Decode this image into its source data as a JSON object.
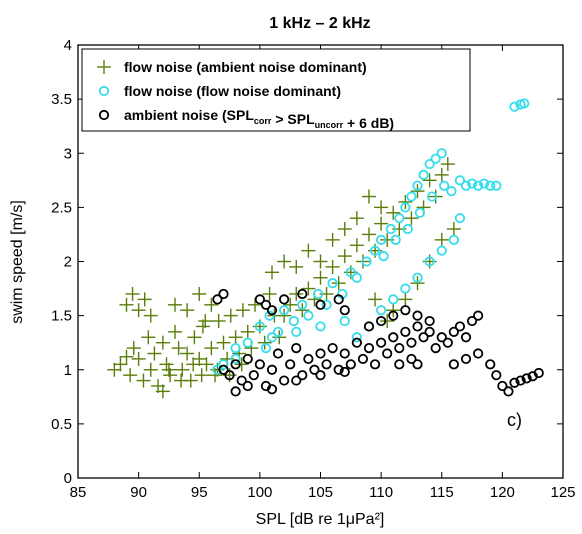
{
  "chart_data": {
    "type": "scatter",
    "title": "1 kHz – 2 kHz",
    "xlabel": "SPL [dB re 1μPa²]",
    "ylabel": "swim speed [m/s]",
    "xlim": [
      85,
      125
    ],
    "ylim": [
      0,
      4
    ],
    "xticks": [
      85,
      90,
      95,
      100,
      105,
      110,
      115,
      120,
      125
    ],
    "yticks": [
      0,
      0.5,
      1,
      1.5,
      2,
      2.5,
      3,
      3.5,
      4
    ],
    "xtick_labels": [
      "85",
      "90",
      "95",
      "100",
      "105",
      "110",
      "115",
      "120",
      "125"
    ],
    "ytick_labels": [
      "0",
      "0.5",
      "1",
      "1.5",
      "2",
      "2.5",
      "3",
      "3.5",
      "4"
    ],
    "panel_label": "c)",
    "legend_position": "top-left",
    "grid": false,
    "series": [
      {
        "name": "flow noise (ambient noise dominant)",
        "marker": "plus",
        "color": "#5a7d0a",
        "points": [
          [
            88,
            1.0
          ],
          [
            88.5,
            1.05
          ],
          [
            89,
            1.12
          ],
          [
            89.3,
            0.95
          ],
          [
            89.6,
            1.2
          ],
          [
            90,
            1.1
          ],
          [
            90.4,
            0.9
          ],
          [
            90.8,
            1.3
          ],
          [
            91,
            1.0
          ],
          [
            91.3,
            1.15
          ],
          [
            91.6,
            0.85
          ],
          [
            92,
            1.25
          ],
          [
            92.3,
            1.05
          ],
          [
            92.6,
            0.95
          ],
          [
            93,
            1.35
          ],
          [
            93.3,
            1.2
          ],
          [
            93.6,
            1.0
          ],
          [
            94,
            1.15
          ],
          [
            94.3,
            0.9
          ],
          [
            94.6,
            1.3
          ],
          [
            95,
            1.1
          ],
          [
            95.3,
            1.4
          ],
          [
            95.6,
            1.05
          ],
          [
            96,
            1.2
          ],
          [
            96.3,
            0.95
          ],
          [
            96.6,
            1.45
          ],
          [
            97,
            1.25
          ],
          [
            97.3,
            1.1
          ],
          [
            97.6,
            1.5
          ],
          [
            98,
            1.3
          ],
          [
            98.3,
            1.15
          ],
          [
            98.6,
            1.55
          ],
          [
            99,
            1.35
          ],
          [
            99.3,
            1.2
          ],
          [
            99.6,
            1.6
          ],
          [
            100,
            1.4
          ],
          [
            100.4,
            1.25
          ],
          [
            100.8,
            1.7
          ],
          [
            101.2,
            1.5
          ],
          [
            101.6,
            1.3
          ],
          [
            89,
            1.6
          ],
          [
            89.5,
            1.7
          ],
          [
            90,
            1.55
          ],
          [
            90.5,
            1.65
          ],
          [
            91,
            1.5
          ],
          [
            93,
            1.6
          ],
          [
            94,
            1.55
          ],
          [
            95,
            1.7
          ],
          [
            95.5,
            1.45
          ],
          [
            96,
            1.6
          ],
          [
            92,
            0.8
          ],
          [
            92.5,
            1.0
          ],
          [
            93.5,
            0.9
          ],
          [
            94.5,
            1.05
          ],
          [
            95.2,
            0.95
          ],
          [
            96.5,
            1.0
          ],
          [
            97.5,
            0.95
          ],
          [
            98.5,
            1.05
          ],
          [
            102,
            1.5
          ],
          [
            102.5,
            1.6
          ],
          [
            103,
            1.7
          ],
          [
            103.5,
            1.55
          ],
          [
            104,
            1.75
          ],
          [
            104.5,
            1.65
          ],
          [
            105,
            1.85
          ],
          [
            105.5,
            1.7
          ],
          [
            106,
            1.95
          ],
          [
            106.5,
            1.8
          ],
          [
            107,
            2.05
          ],
          [
            107.5,
            1.9
          ],
          [
            108,
            2.15
          ],
          [
            108.5,
            2.0
          ],
          [
            109,
            2.25
          ],
          [
            109.5,
            2.1
          ],
          [
            110,
            2.35
          ],
          [
            110.5,
            2.2
          ],
          [
            111,
            2.45
          ],
          [
            111.5,
            2.3
          ],
          [
            112,
            2.55
          ],
          [
            112.5,
            2.4
          ],
          [
            113,
            2.65
          ],
          [
            113.5,
            2.5
          ],
          [
            114,
            2.75
          ],
          [
            114.5,
            2.6
          ],
          [
            115,
            2.8
          ],
          [
            115.5,
            2.9
          ],
          [
            101,
            1.9
          ],
          [
            102,
            2.0
          ],
          [
            103,
            1.95
          ],
          [
            104,
            2.1
          ],
          [
            105,
            2.0
          ],
          [
            106,
            2.2
          ],
          [
            107,
            2.3
          ],
          [
            108,
            2.4
          ],
          [
            109,
            2.6
          ],
          [
            110,
            2.5
          ],
          [
            111,
            1.55
          ],
          [
            112,
            1.65
          ],
          [
            113,
            1.8
          ],
          [
            114,
            2.0
          ],
          [
            115,
            2.2
          ],
          [
            116,
            2.3
          ],
          [
            110.5,
            1.45
          ],
          [
            109.5,
            1.65
          ]
        ]
      },
      {
        "name": "flow noise (flow noise dominant)",
        "marker": "circle",
        "color": "#33ddee",
        "points": [
          [
            100,
            1.4
          ],
          [
            100.8,
            1.5
          ],
          [
            101.5,
            1.35
          ],
          [
            102,
            1.55
          ],
          [
            102.8,
            1.45
          ],
          [
            103.5,
            1.6
          ],
          [
            104,
            1.5
          ],
          [
            104.8,
            1.7
          ],
          [
            105.5,
            1.6
          ],
          [
            106,
            1.8
          ],
          [
            106.8,
            1.7
          ],
          [
            107.5,
            1.9
          ],
          [
            108,
            1.85
          ],
          [
            108.8,
            2.0
          ],
          [
            109.5,
            2.1
          ],
          [
            110,
            2.2
          ],
          [
            110.8,
            2.3
          ],
          [
            111.5,
            2.4
          ],
          [
            112,
            2.5
          ],
          [
            112.5,
            2.6
          ],
          [
            113,
            2.7
          ],
          [
            113.5,
            2.8
          ],
          [
            114,
            2.9
          ],
          [
            114.5,
            2.95
          ],
          [
            115,
            3.0
          ],
          [
            114.2,
            2.6
          ],
          [
            113.2,
            2.45
          ],
          [
            112.2,
            2.3
          ],
          [
            111.2,
            2.2
          ],
          [
            110.2,
            2.05
          ],
          [
            115.2,
            2.7
          ],
          [
            115.8,
            2.65
          ],
          [
            116.5,
            2.75
          ],
          [
            117,
            2.7
          ],
          [
            117.5,
            2.72
          ],
          [
            118,
            2.7
          ],
          [
            118.5,
            2.72
          ],
          [
            119,
            2.7
          ],
          [
            119.5,
            2.7
          ],
          [
            121,
            3.43
          ],
          [
            121.5,
            3.45
          ],
          [
            121.8,
            3.46
          ],
          [
            108,
            1.3
          ],
          [
            109,
            1.4
          ],
          [
            110,
            1.55
          ],
          [
            111,
            1.65
          ],
          [
            112,
            1.75
          ],
          [
            113,
            1.85
          ],
          [
            114,
            2.0
          ],
          [
            115,
            2.1
          ],
          [
            116,
            2.2
          ],
          [
            116.5,
            2.4
          ],
          [
            98,
            1.2
          ],
          [
            99,
            1.25
          ],
          [
            100.5,
            1.2
          ],
          [
            101,
            1.3
          ],
          [
            103,
            1.35
          ],
          [
            105,
            1.4
          ],
          [
            107,
            1.45
          ],
          [
            96.5,
            1.0
          ],
          [
            97,
            1.05
          ],
          [
            98,
            1.1
          ]
        ]
      },
      {
        "name": "ambient noise (SPLcorr > SPLuncorr + 6 dB)",
        "marker": "circle",
        "color": "#000000",
        "points": [
          [
            97,
            1.0
          ],
          [
            97.5,
            0.95
          ],
          [
            98,
            1.05
          ],
          [
            98.5,
            0.9
          ],
          [
            99,
            1.1
          ],
          [
            99.5,
            0.95
          ],
          [
            100,
            1.05
          ],
          [
            100.5,
            0.85
          ],
          [
            101,
            1.0
          ],
          [
            101.5,
            1.15
          ],
          [
            102,
            0.9
          ],
          [
            102.5,
            1.05
          ],
          [
            103,
            1.2
          ],
          [
            103.5,
            0.95
          ],
          [
            104,
            1.1
          ],
          [
            104.5,
            1.0
          ],
          [
            105,
            1.15
          ],
          [
            105.5,
            1.05
          ],
          [
            106,
            1.2
          ],
          [
            106.5,
            1.0
          ],
          [
            107,
            1.15
          ],
          [
            107.5,
            1.05
          ],
          [
            108,
            1.25
          ],
          [
            108.5,
            1.1
          ],
          [
            109,
            1.2
          ],
          [
            109.5,
            1.05
          ],
          [
            110,
            1.25
          ],
          [
            110.5,
            1.15
          ],
          [
            111,
            1.3
          ],
          [
            111.5,
            1.2
          ],
          [
            112,
            1.35
          ],
          [
            112.5,
            1.25
          ],
          [
            113,
            1.4
          ],
          [
            113.5,
            1.3
          ],
          [
            114,
            1.35
          ],
          [
            114.5,
            1.2
          ],
          [
            115,
            1.3
          ],
          [
            115.5,
            1.25
          ],
          [
            116,
            1.35
          ],
          [
            116.5,
            1.4
          ],
          [
            117,
            1.3
          ],
          [
            117.5,
            1.45
          ],
          [
            118,
            1.5
          ],
          [
            116,
            1.05
          ],
          [
            117,
            1.1
          ],
          [
            118,
            1.15
          ],
          [
            119,
            1.05
          ],
          [
            119.5,
            0.95
          ],
          [
            120,
            0.85
          ],
          [
            120.5,
            0.8
          ],
          [
            121,
            0.88
          ],
          [
            121.5,
            0.9
          ],
          [
            122,
            0.92
          ],
          [
            122.5,
            0.94
          ],
          [
            123,
            0.97
          ],
          [
            96.5,
            1.65
          ],
          [
            97,
            1.7
          ],
          [
            100,
            1.65
          ],
          [
            100.5,
            1.6
          ],
          [
            101,
            1.55
          ],
          [
            102,
            1.65
          ],
          [
            103.5,
            1.7
          ],
          [
            105,
            1.6
          ],
          [
            106.5,
            1.65
          ],
          [
            107,
            1.55
          ],
          [
            109,
            1.4
          ],
          [
            110,
            1.45
          ],
          [
            111,
            1.5
          ],
          [
            112,
            1.55
          ],
          [
            113,
            1.5
          ],
          [
            114,
            1.45
          ],
          [
            112.5,
            1.1
          ],
          [
            113,
            1.05
          ],
          [
            111.5,
            1.05
          ],
          [
            98,
            0.8
          ],
          [
            99,
            0.85
          ],
          [
            101,
            0.82
          ],
          [
            103,
            0.9
          ],
          [
            105,
            0.95
          ],
          [
            107,
            0.98
          ]
        ]
      }
    ]
  }
}
